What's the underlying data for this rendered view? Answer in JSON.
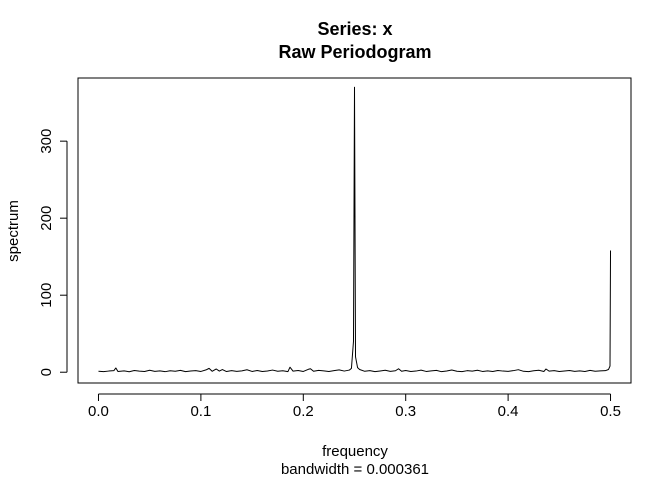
{
  "chart_data": {
    "type": "line",
    "title": "Series: x",
    "subtitle": "Raw Periodogram",
    "xlabel": "frequency",
    "xlabel_sub": "bandwidth = 0.000361",
    "ylabel": "spectrum",
    "xlim": [
      -0.02,
      0.52
    ],
    "ylim": [
      -14,
      382
    ],
    "x_ticks": [
      0.0,
      0.1,
      0.2,
      0.3,
      0.4,
      0.5
    ],
    "x_tick_labels": [
      "0.0",
      "0.1",
      "0.2",
      "0.3",
      "0.4",
      "0.5"
    ],
    "y_ticks": [
      0,
      100,
      200,
      300
    ],
    "y_tick_labels": [
      "0",
      "100",
      "200",
      "300"
    ],
    "grid": false,
    "line_color": "#000000",
    "series": [
      {
        "x": [
          0.0,
          0.005,
          0.01,
          0.015,
          0.017,
          0.019,
          0.025,
          0.03,
          0.035,
          0.04,
          0.045,
          0.05,
          0.055,
          0.06,
          0.065,
          0.07,
          0.075,
          0.08,
          0.085,
          0.09,
          0.095,
          0.1,
          0.105,
          0.108,
          0.111,
          0.115,
          0.118,
          0.121,
          0.125,
          0.13,
          0.135,
          0.14,
          0.145,
          0.15,
          0.155,
          0.16,
          0.165,
          0.17,
          0.175,
          0.18,
          0.185,
          0.187,
          0.19,
          0.195,
          0.2,
          0.205,
          0.207,
          0.21,
          0.215,
          0.22,
          0.225,
          0.23,
          0.235,
          0.24,
          0.245,
          0.247,
          0.249,
          0.25,
          0.251,
          0.253,
          0.255,
          0.26,
          0.265,
          0.27,
          0.275,
          0.28,
          0.285,
          0.29,
          0.293,
          0.296,
          0.3,
          0.305,
          0.31,
          0.315,
          0.32,
          0.325,
          0.33,
          0.335,
          0.34,
          0.345,
          0.35,
          0.355,
          0.36,
          0.365,
          0.37,
          0.375,
          0.38,
          0.385,
          0.39,
          0.395,
          0.4,
          0.405,
          0.41,
          0.415,
          0.42,
          0.425,
          0.43,
          0.435,
          0.437,
          0.44,
          0.445,
          0.45,
          0.455,
          0.46,
          0.465,
          0.47,
          0.475,
          0.48,
          0.485,
          0.49,
          0.495,
          0.498,
          0.4995,
          0.5
        ],
        "y": [
          1.2,
          0.8,
          1.5,
          2.0,
          5.5,
          1.0,
          1.8,
          0.6,
          2.2,
          1.4,
          0.9,
          2.6,
          1.1,
          1.7,
          0.7,
          1.9,
          1.3,
          2.4,
          0.8,
          1.6,
          2.1,
          1.0,
          3.0,
          5.0,
          1.2,
          4.2,
          1.5,
          3.5,
          0.9,
          2.0,
          1.1,
          1.8,
          3.2,
          1.0,
          2.3,
          0.9,
          1.6,
          2.8,
          1.2,
          1.9,
          0.8,
          6.5,
          1.4,
          2.2,
          1.0,
          3.8,
          4.5,
          1.3,
          2.4,
          1.8,
          0.9,
          2.0,
          3.0,
          1.5,
          2.8,
          5.0,
          40.0,
          370.0,
          20.0,
          6.0,
          3.5,
          1.2,
          2.1,
          0.8,
          1.6,
          2.5,
          1.1,
          1.9,
          4.5,
          1.3,
          2.2,
          0.9,
          1.5,
          2.7,
          1.0,
          1.8,
          2.4,
          0.7,
          1.6,
          2.9,
          1.2,
          0.8,
          2.0,
          1.4,
          2.6,
          1.0,
          1.7,
          0.9,
          2.3,
          1.5,
          1.1,
          2.0,
          3.3,
          1.2,
          0.8,
          1.9,
          2.5,
          1.0,
          4.2,
          1.4,
          2.0,
          0.9,
          1.6,
          2.2,
          1.1,
          1.8,
          0.9,
          2.4,
          1.3,
          1.7,
          2.0,
          3.5,
          8.0,
          158.0
        ]
      }
    ]
  }
}
